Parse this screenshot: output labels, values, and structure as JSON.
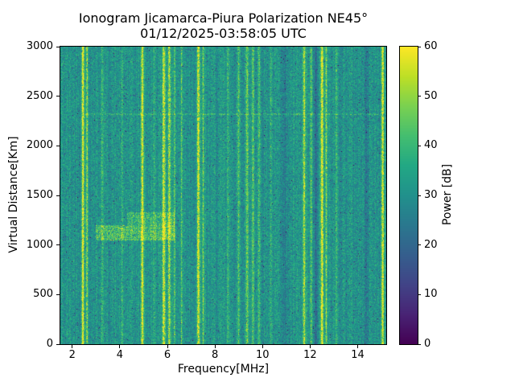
{
  "title": "Ionogram Jicamarca-Piura Polarization NE45°",
  "subtitle": "01/12/2025-03:58:05 UTC",
  "chart_data": {
    "type": "heatmap",
    "xlabel": "Frequency[MHz]",
    "ylabel": "Virtual Distance[Km]",
    "xlim": [
      1.5,
      15.2
    ],
    "ylim": [
      0,
      3000
    ],
    "xticks": [
      2,
      4,
      6,
      8,
      10,
      12,
      14
    ],
    "yticks": [
      0,
      500,
      1000,
      1500,
      2000,
      2500,
      3000
    ],
    "colorbar": {
      "label": "Power [dB]",
      "min": 0,
      "max": 60,
      "ticks": [
        0,
        10,
        20,
        30,
        40,
        50,
        60
      ],
      "colormap": "viridis"
    },
    "background": {
      "mean_db": 31,
      "noise_db": 8,
      "dark_speckle_prob": 0.028
    },
    "rfi_bands": [
      {
        "freq_mhz": 2.45,
        "width_mhz": 0.055,
        "peak_db_above_bg": 30
      },
      {
        "freq_mhz": 2.62,
        "width_mhz": 0.04,
        "peak_db_above_bg": 18
      },
      {
        "freq_mhz": 3.25,
        "width_mhz": 0.05,
        "peak_db_above_bg": 8
      },
      {
        "freq_mhz": 4.1,
        "width_mhz": 0.04,
        "peak_db_above_bg": 6
      },
      {
        "freq_mhz": 4.95,
        "width_mhz": 0.055,
        "peak_db_above_bg": 28
      },
      {
        "freq_mhz": 5.45,
        "width_mhz": 0.04,
        "peak_db_above_bg": 8
      },
      {
        "freq_mhz": 5.85,
        "width_mhz": 0.06,
        "peak_db_above_bg": 28
      },
      {
        "freq_mhz": 6.08,
        "width_mhz": 0.05,
        "peak_db_above_bg": 26
      },
      {
        "freq_mhz": 6.3,
        "width_mhz": 0.04,
        "peak_db_above_bg": 14
      },
      {
        "freq_mhz": 6.6,
        "width_mhz": 0.04,
        "peak_db_above_bg": 12
      },
      {
        "freq_mhz": 7.3,
        "width_mhz": 0.055,
        "peak_db_above_bg": 28
      },
      {
        "freq_mhz": 7.5,
        "width_mhz": 0.04,
        "peak_db_above_bg": 14
      },
      {
        "freq_mhz": 8.55,
        "width_mhz": 0.04,
        "peak_db_above_bg": 8
      },
      {
        "freq_mhz": 9.0,
        "width_mhz": 0.05,
        "peak_db_above_bg": 10
      },
      {
        "freq_mhz": 9.35,
        "width_mhz": 0.06,
        "peak_db_above_bg": 13
      },
      {
        "freq_mhz": 9.6,
        "width_mhz": 0.05,
        "peak_db_above_bg": 14
      },
      {
        "freq_mhz": 9.85,
        "width_mhz": 0.05,
        "peak_db_above_bg": 11
      },
      {
        "freq_mhz": 10.35,
        "width_mhz": 0.04,
        "peak_db_above_bg": 9
      },
      {
        "freq_mhz": 11.75,
        "width_mhz": 0.05,
        "peak_db_above_bg": 22
      },
      {
        "freq_mhz": 12.05,
        "width_mhz": 0.04,
        "peak_db_above_bg": 12
      },
      {
        "freq_mhz": 12.5,
        "width_mhz": 0.06,
        "peak_db_above_bg": 30
      },
      {
        "freq_mhz": 12.68,
        "width_mhz": 0.04,
        "peak_db_above_bg": 16
      },
      {
        "freq_mhz": 13.1,
        "width_mhz": 0.04,
        "peak_db_above_bg": 9
      },
      {
        "freq_mhz": 15.05,
        "width_mhz": 0.05,
        "peak_db_above_bg": 28
      }
    ],
    "dark_bands": [
      {
        "freq_mhz": 10.95,
        "width_mhz": 0.07,
        "delta_db": -7
      },
      {
        "freq_mhz": 12.25,
        "width_mhz": 0.09,
        "delta_db": -9
      },
      {
        "freq_mhz": 14.35,
        "width_mhz": 0.12,
        "delta_db": -4
      }
    ],
    "echo_regions": [
      {
        "freq_range_mhz": [
          3.0,
          6.3
        ],
        "height_range_km": [
          1050,
          1200
        ],
        "extra_db": 12
      },
      {
        "freq_range_mhz": [
          4.3,
          6.3
        ],
        "height_range_km": [
          1200,
          1330
        ],
        "extra_db": 9
      }
    ],
    "horizontal_line": {
      "height_km": 2320,
      "freq_range_mhz": [
        2.4,
        14.9
      ],
      "extra_db": 7,
      "thickness_km": 22
    }
  }
}
